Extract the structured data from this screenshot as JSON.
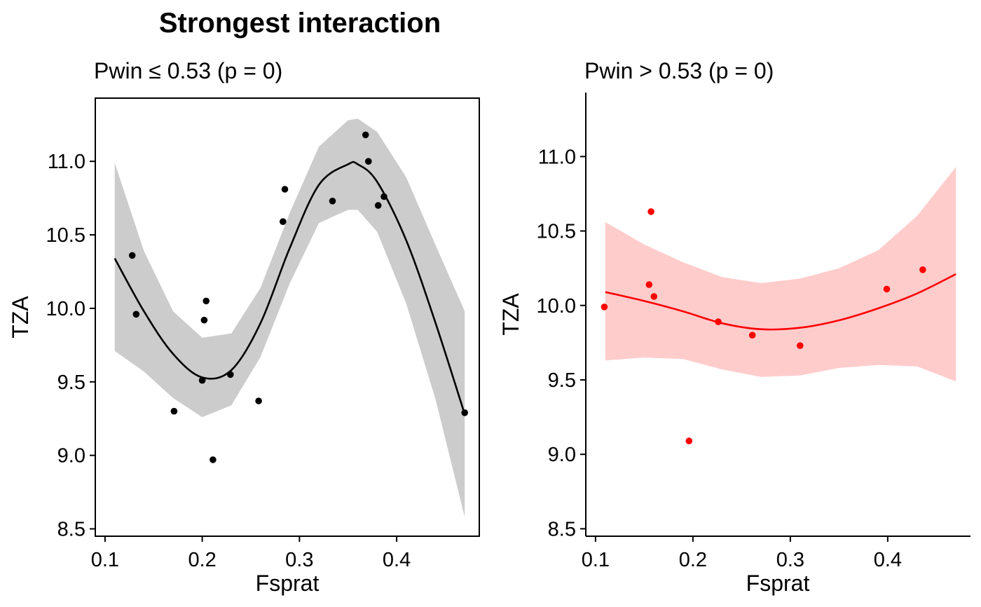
{
  "title": "Strongest interaction",
  "chart_data": [
    {
      "type": "scatter",
      "subtitle": "Pwin ≤ 0.53 (p = 0)",
      "xlabel": "Fsprat",
      "ylabel": "TZA",
      "xlim": [
        0.09,
        0.485
      ],
      "ylim": [
        8.45,
        11.43
      ],
      "xticks": [
        "0.1",
        "0.2",
        "0.3",
        "0.4"
      ],
      "yticks": [
        "8.5",
        "9.0",
        "9.5",
        "10.0",
        "10.5",
        "11.0"
      ],
      "color": "#000000",
      "ribbon_color": "#cccccc",
      "box": "full",
      "points": [
        {
          "x": 0.128,
          "y": 10.36
        },
        {
          "x": 0.132,
          "y": 9.96
        },
        {
          "x": 0.171,
          "y": 9.3
        },
        {
          "x": 0.2,
          "y": 9.51
        },
        {
          "x": 0.202,
          "y": 9.92
        },
        {
          "x": 0.204,
          "y": 10.05
        },
        {
          "x": 0.211,
          "y": 8.97
        },
        {
          "x": 0.229,
          "y": 9.55
        },
        {
          "x": 0.258,
          "y": 9.37
        },
        {
          "x": 0.283,
          "y": 10.59
        },
        {
          "x": 0.285,
          "y": 10.81
        },
        {
          "x": 0.334,
          "y": 10.73
        },
        {
          "x": 0.368,
          "y": 11.18
        },
        {
          "x": 0.371,
          "y": 11.0
        },
        {
          "x": 0.381,
          "y": 10.7
        },
        {
          "x": 0.387,
          "y": 10.76
        },
        {
          "x": 0.47,
          "y": 9.29
        }
      ],
      "fit": {
        "x": [
          0.11,
          0.14,
          0.17,
          0.2,
          0.23,
          0.26,
          0.29,
          0.32,
          0.35,
          0.36,
          0.38,
          0.41,
          0.44,
          0.47
        ],
        "y": [
          10.34,
          9.98,
          9.69,
          9.53,
          9.58,
          9.9,
          10.41,
          10.84,
          10.98,
          10.98,
          10.86,
          10.46,
          9.9,
          9.28
        ],
        "lower": [
          9.71,
          9.57,
          9.39,
          9.26,
          9.34,
          9.67,
          10.17,
          10.58,
          10.67,
          10.67,
          10.52,
          10.03,
          9.38,
          8.58
        ],
        "upper": [
          10.99,
          10.39,
          9.98,
          9.8,
          9.83,
          10.14,
          10.65,
          11.1,
          11.28,
          11.29,
          11.2,
          10.89,
          10.43,
          9.98
        ]
      }
    },
    {
      "type": "scatter",
      "subtitle": "Pwin > 0.53 (p = 0)",
      "xlabel": "Fsprat",
      "ylabel": "TZA",
      "xlim": [
        0.09,
        0.485
      ],
      "ylim": [
        8.45,
        11.43
      ],
      "xticks": [
        "0.1",
        "0.2",
        "0.3",
        "0.4"
      ],
      "yticks": [
        "8.5",
        "9.0",
        "9.5",
        "10.0",
        "10.5",
        "11.0"
      ],
      "color": "#ff0000",
      "ribbon_color": "#ffcccc",
      "box": "axes",
      "points": [
        {
          "x": 0.109,
          "y": 9.99
        },
        {
          "x": 0.155,
          "y": 10.14
        },
        {
          "x": 0.157,
          "y": 10.63
        },
        {
          "x": 0.16,
          "y": 10.06
        },
        {
          "x": 0.196,
          "y": 9.09
        },
        {
          "x": 0.226,
          "y": 9.89
        },
        {
          "x": 0.261,
          "y": 9.8
        },
        {
          "x": 0.31,
          "y": 9.73
        },
        {
          "x": 0.399,
          "y": 10.11
        },
        {
          "x": 0.436,
          "y": 10.24
        }
      ],
      "fit": {
        "x": [
          0.11,
          0.15,
          0.19,
          0.23,
          0.27,
          0.31,
          0.35,
          0.39,
          0.43,
          0.47
        ],
        "y": [
          10.09,
          10.03,
          9.96,
          9.88,
          9.84,
          9.85,
          9.9,
          9.98,
          10.08,
          10.21
        ],
        "lower": [
          9.63,
          9.65,
          9.64,
          9.57,
          9.52,
          9.53,
          9.58,
          9.6,
          9.59,
          9.49
        ],
        "upper": [
          10.56,
          10.41,
          10.29,
          10.19,
          10.15,
          10.18,
          10.25,
          10.37,
          10.6,
          10.93
        ]
      }
    }
  ]
}
